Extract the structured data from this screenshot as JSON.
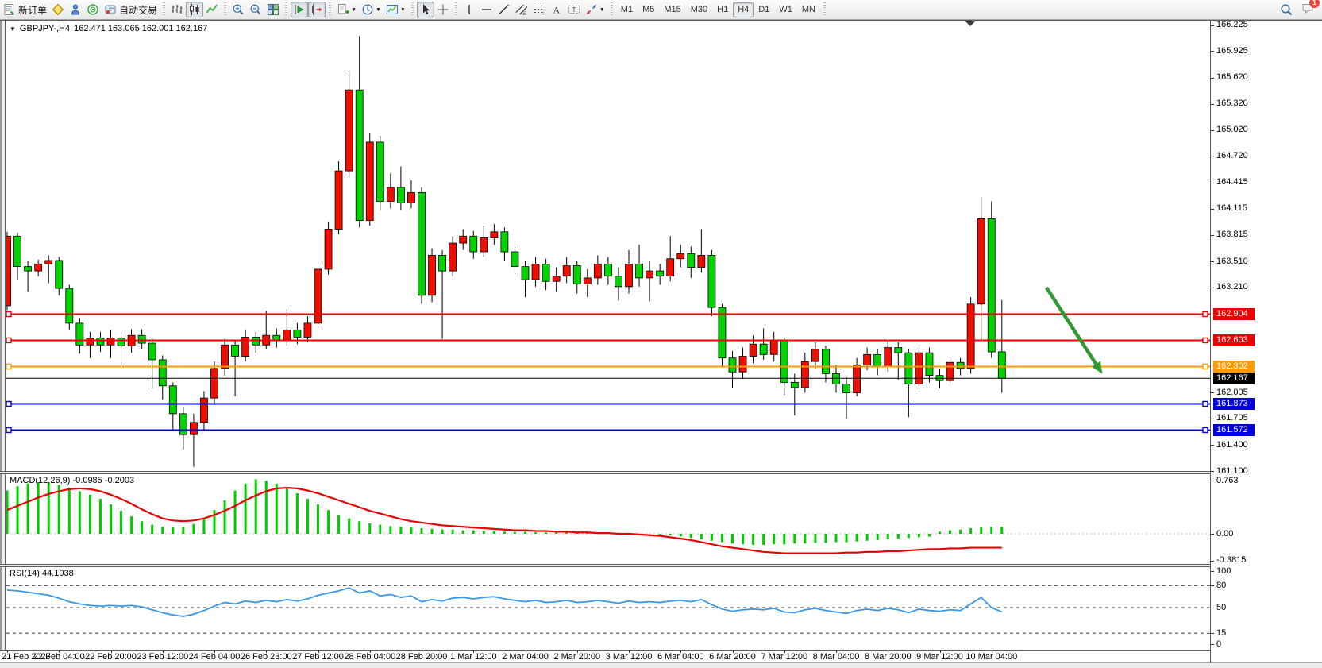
{
  "toolbar": {
    "groups": [
      {
        "items": [
          {
            "name": "new-order",
            "icon": "form",
            "label": "新订单"
          },
          {
            "name": "new-chart",
            "icon": "diamond"
          },
          {
            "name": "market-watch",
            "icon": "person"
          },
          {
            "name": "navigator",
            "icon": "radar"
          },
          {
            "name": "auto-trading",
            "icon": "autotrade",
            "label": "自动交易"
          }
        ]
      },
      {
        "items": [
          {
            "name": "bar-chart-mode",
            "icon": "bars"
          },
          {
            "name": "candle-chart-mode",
            "icon": "candles",
            "pressed": true
          },
          {
            "name": "line-chart-mode",
            "icon": "linechart"
          }
        ]
      },
      {
        "items": [
          {
            "name": "zoom-in",
            "icon": "zoomin"
          },
          {
            "name": "zoom-out",
            "icon": "zoomout"
          },
          {
            "name": "tile-windows",
            "icon": "tiles"
          }
        ]
      },
      {
        "items": [
          {
            "name": "chart-shift",
            "icon": "shift",
            "pressed": true
          },
          {
            "name": "auto-scroll",
            "icon": "autoscroll",
            "pressed": true
          }
        ]
      },
      {
        "items": [
          {
            "name": "new-order-menu",
            "icon": "orderplus",
            "dropdown": true
          },
          {
            "name": "periods-menu",
            "icon": "clock",
            "dropdown": true
          },
          {
            "name": "templates-menu",
            "icon": "template",
            "dropdown": true
          }
        ]
      },
      {
        "items": [
          {
            "name": "cursor-tool",
            "icon": "cursor",
            "pressed": true
          },
          {
            "name": "crosshair-tool",
            "icon": "crosshair"
          }
        ]
      },
      {
        "items": [
          {
            "name": "vertical-line-tool",
            "icon": "vline"
          },
          {
            "name": "horizontal-line-tool",
            "icon": "hline"
          },
          {
            "name": "trendline-tool",
            "icon": "trend"
          },
          {
            "name": "channel-tool",
            "icon": "channel"
          },
          {
            "name": "fibonacci-tool",
            "icon": "fibo"
          },
          {
            "name": "text-tool",
            "icon": "textA"
          },
          {
            "name": "text-label-tool",
            "icon": "label"
          },
          {
            "name": "arrows-tool",
            "icon": "arrows",
            "dropdown": true
          }
        ]
      }
    ],
    "timeframes": {
      "items": [
        "M1",
        "M5",
        "M15",
        "M30",
        "H1",
        "H4",
        "D1",
        "W1",
        "MN"
      ],
      "active": "H4"
    },
    "search_icon": "search",
    "notification_count": "1"
  },
  "chart": {
    "title": {
      "symbol_period": "GBPJPY-,H4",
      "ohlc": "162.471 163.065 162.001 162.167"
    },
    "macd_label": "MACD(12,26,9)",
    "macd_values": "-0.0985 -0.2003",
    "rsi_label": "RSI(14)",
    "rsi_value": "44.1038"
  },
  "chart_data": {
    "type": "candlestick",
    "symbol": "GBPJPY-",
    "period": "H4",
    "last_bar": {
      "open": 162.471,
      "high": 163.065,
      "low": 162.001,
      "close": 162.167
    },
    "up_color": "#ED1000",
    "down_color": "#00D300",
    "wick_color": "#000000",
    "price_axis_ticks": [
      166.225,
      165.925,
      165.62,
      165.32,
      165.02,
      164.72,
      164.415,
      164.115,
      163.815,
      163.51,
      163.21,
      162.005,
      161.705,
      161.4,
      161.1
    ],
    "ylim": [
      161.1,
      166.24
    ],
    "grid": false,
    "hlines": [
      {
        "price": 162.904,
        "color": "#ee0000",
        "width": 2,
        "markers": true
      },
      {
        "price": 162.603,
        "color": "#ee0000",
        "width": 2,
        "markers": true
      },
      {
        "price": 162.302,
        "color": "#ff9900",
        "width": 2,
        "markers": true
      },
      {
        "price": 162.167,
        "color": "#000000",
        "width": 1,
        "markers": false
      },
      {
        "price": 161.873,
        "color": "#0000e0",
        "width": 2,
        "markers": true
      },
      {
        "price": 161.572,
        "color": "#0000e0",
        "width": 2,
        "markers": true
      }
    ],
    "current_price": 162.167,
    "arrow_annotation": {
      "from": {
        "bar": 100.3,
        "price": 163.21
      },
      "to": {
        "bar": 105.7,
        "price": 162.22
      },
      "color": "#339933"
    },
    "time_labels": [
      "21 Feb 2023",
      "22 Feb 04:00",
      "22 Feb 20:00",
      "23 Feb 12:00",
      "24 Feb 04:00",
      "26 Feb 23:00",
      "27 Feb 12:00",
      "28 Feb 04:00",
      "28 Feb 20:00",
      "1 Mar 12:00",
      "2 Mar 04:00",
      "2 Mar 20:00",
      "3 Mar 12:00",
      "6 Mar 04:00",
      "6 Mar 20:00",
      "7 Mar 12:00",
      "8 Mar 04:00",
      "8 Mar 20:00",
      "9 Mar 12:00",
      "10 Mar 04:00"
    ],
    "bars_per_tick": 5,
    "candles": [
      [
        163.0,
        163.85,
        162.95,
        163.8
      ],
      [
        163.8,
        163.84,
        163.3,
        163.45
      ],
      [
        163.45,
        163.52,
        163.16,
        163.4
      ],
      [
        163.4,
        163.53,
        163.34,
        163.48
      ],
      [
        163.48,
        163.58,
        163.26,
        163.52
      ],
      [
        163.52,
        163.56,
        163.12,
        163.2
      ],
      [
        163.2,
        163.24,
        162.72,
        162.8
      ],
      [
        162.8,
        162.86,
        162.45,
        162.55
      ],
      [
        162.55,
        162.7,
        162.4,
        162.63
      ],
      [
        162.63,
        162.7,
        162.47,
        162.55
      ],
      [
        162.55,
        162.72,
        162.4,
        162.63
      ],
      [
        162.63,
        162.7,
        162.28,
        162.54
      ],
      [
        162.54,
        162.73,
        162.46,
        162.66
      ],
      [
        162.66,
        162.73,
        162.5,
        162.57
      ],
      [
        162.57,
        162.63,
        162.05,
        162.38
      ],
      [
        162.38,
        162.43,
        161.92,
        162.08
      ],
      [
        162.08,
        162.12,
        161.58,
        161.76
      ],
      [
        161.76,
        161.84,
        161.35,
        161.52
      ],
      [
        161.52,
        161.76,
        161.15,
        161.66
      ],
      [
        161.66,
        162.02,
        161.58,
        161.94
      ],
      [
        161.94,
        162.36,
        161.86,
        162.28
      ],
      [
        162.28,
        162.62,
        162.2,
        162.55
      ],
      [
        162.55,
        162.6,
        161.96,
        162.42
      ],
      [
        162.42,
        162.72,
        162.36,
        162.64
      ],
      [
        162.64,
        162.7,
        162.46,
        162.55
      ],
      [
        162.55,
        162.94,
        162.5,
        162.66
      ],
      [
        162.66,
        162.74,
        162.52,
        162.6
      ],
      [
        162.6,
        162.96,
        162.54,
        162.72
      ],
      [
        162.72,
        162.8,
        162.56,
        162.64
      ],
      [
        162.64,
        162.88,
        162.58,
        162.8
      ],
      [
        162.8,
        163.5,
        162.74,
        163.42
      ],
      [
        163.42,
        163.96,
        163.36,
        163.88
      ],
      [
        163.88,
        164.66,
        163.82,
        164.55
      ],
      [
        164.55,
        165.7,
        164.48,
        165.48
      ],
      [
        165.48,
        166.1,
        163.9,
        163.98
      ],
      [
        163.98,
        164.98,
        163.92,
        164.88
      ],
      [
        164.88,
        164.95,
        164.1,
        164.2
      ],
      [
        164.2,
        164.52,
        164.12,
        164.36
      ],
      [
        164.36,
        164.6,
        164.1,
        164.18
      ],
      [
        164.18,
        164.44,
        164.12,
        164.3
      ],
      [
        164.3,
        164.36,
        163.02,
        163.12
      ],
      [
        163.12,
        163.66,
        163.04,
        163.58
      ],
      [
        163.58,
        163.64,
        162.62,
        163.4
      ],
      [
        163.4,
        163.8,
        163.34,
        163.72
      ],
      [
        163.72,
        163.88,
        163.64,
        163.8
      ],
      [
        163.8,
        163.86,
        163.54,
        163.62
      ],
      [
        163.62,
        163.92,
        163.56,
        163.78
      ],
      [
        163.78,
        163.94,
        163.7,
        163.85
      ],
      [
        163.85,
        163.9,
        163.52,
        163.62
      ],
      [
        163.62,
        163.68,
        163.36,
        163.45
      ],
      [
        163.45,
        163.52,
        163.1,
        163.3
      ],
      [
        163.3,
        163.56,
        163.22,
        163.48
      ],
      [
        163.48,
        163.54,
        163.18,
        163.28
      ],
      [
        163.28,
        163.44,
        163.16,
        163.34
      ],
      [
        163.34,
        163.56,
        163.26,
        163.46
      ],
      [
        163.46,
        163.52,
        163.14,
        163.25
      ],
      [
        163.25,
        163.42,
        163.1,
        163.32
      ],
      [
        163.32,
        163.58,
        163.24,
        163.48
      ],
      [
        163.48,
        163.56,
        163.24,
        163.34
      ],
      [
        163.34,
        163.44,
        163.06,
        163.22
      ],
      [
        163.22,
        163.64,
        163.14,
        163.48
      ],
      [
        163.48,
        163.7,
        163.22,
        163.32
      ],
      [
        163.32,
        163.52,
        163.05,
        163.4
      ],
      [
        163.4,
        163.48,
        163.24,
        163.34
      ],
      [
        163.34,
        163.8,
        163.28,
        163.54
      ],
      [
        163.54,
        163.7,
        163.44,
        163.6
      ],
      [
        163.6,
        163.68,
        163.32,
        163.44
      ],
      [
        163.44,
        163.88,
        163.38,
        163.58
      ],
      [
        163.58,
        163.64,
        162.88,
        162.98
      ],
      [
        162.98,
        163.02,
        162.3,
        162.4
      ],
      [
        162.4,
        162.48,
        162.06,
        162.24
      ],
      [
        162.24,
        162.52,
        162.16,
        162.42
      ],
      [
        162.42,
        162.66,
        162.34,
        162.56
      ],
      [
        162.56,
        162.74,
        162.38,
        162.44
      ],
      [
        162.44,
        162.7,
        162.36,
        162.6
      ],
      [
        162.6,
        162.64,
        161.98,
        162.12
      ],
      [
        162.12,
        162.22,
        161.74,
        162.06
      ],
      [
        162.06,
        162.46,
        162.0,
        162.36
      ],
      [
        162.36,
        162.58,
        162.28,
        162.5
      ],
      [
        162.5,
        162.54,
        162.12,
        162.22
      ],
      [
        162.22,
        162.32,
        162.0,
        162.1
      ],
      [
        162.1,
        162.18,
        161.7,
        162.0
      ],
      [
        162.0,
        162.4,
        161.96,
        162.32
      ],
      [
        162.32,
        162.52,
        162.26,
        162.44
      ],
      [
        162.44,
        162.5,
        162.2,
        162.3
      ],
      [
        162.3,
        162.6,
        162.24,
        162.52
      ],
      [
        162.52,
        162.58,
        162.15,
        162.46
      ],
      [
        162.46,
        162.5,
        161.72,
        162.1
      ],
      [
        162.1,
        162.52,
        162.04,
        162.46
      ],
      [
        162.46,
        162.52,
        162.12,
        162.2
      ],
      [
        162.2,
        162.28,
        162.05,
        162.14
      ],
      [
        162.14,
        162.42,
        162.08,
        162.35
      ],
      [
        162.35,
        162.4,
        162.2,
        162.28
      ],
      [
        162.28,
        163.1,
        162.22,
        163.02
      ],
      [
        163.02,
        164.25,
        162.6,
        164.0
      ],
      [
        164.0,
        164.2,
        162.4,
        162.47
      ],
      [
        162.471,
        163.065,
        162.001,
        162.167
      ]
    ],
    "macd": {
      "title": "MACD(12,26,9)",
      "main_value": -0.0985,
      "signal_value": -0.2003,
      "axis_labels": [
        0.763,
        0.0,
        -0.3815
      ],
      "hist_color": "#00CC00",
      "signal_color": "#E80000",
      "histogram": [
        0.62,
        0.68,
        0.72,
        0.74,
        0.73,
        0.7,
        0.66,
        0.61,
        0.56,
        0.5,
        0.42,
        0.33,
        0.25,
        0.18,
        0.13,
        0.1,
        0.09,
        0.1,
        0.14,
        0.22,
        0.34,
        0.48,
        0.62,
        0.72,
        0.78,
        0.76,
        0.72,
        0.66,
        0.58,
        0.5,
        0.42,
        0.34,
        0.27,
        0.22,
        0.18,
        0.15,
        0.13,
        0.11,
        0.1,
        0.09,
        0.08,
        0.07,
        0.06,
        0.06,
        0.05,
        0.05,
        0.04,
        0.04,
        0.03,
        0.03,
        0.03,
        0.02,
        0.02,
        0.02,
        0.02,
        0.02,
        0.01,
        0.01,
        0.01,
        0.01,
        0.01,
        0.0,
        0.0,
        -0.01,
        -0.02,
        -0.04,
        -0.06,
        -0.08,
        -0.1,
        -0.12,
        -0.14,
        -0.15,
        -0.16,
        -0.16,
        -0.15,
        -0.15,
        -0.14,
        -0.14,
        -0.13,
        -0.13,
        -0.12,
        -0.12,
        -0.11,
        -0.1,
        -0.09,
        -0.08,
        -0.07,
        -0.06,
        -0.05,
        -0.04,
        0.03,
        0.05,
        0.06,
        0.08,
        0.09,
        0.1,
        0.1
      ],
      "signal": [
        0.34,
        0.4,
        0.46,
        0.52,
        0.57,
        0.61,
        0.64,
        0.65,
        0.64,
        0.61,
        0.56,
        0.5,
        0.43,
        0.35,
        0.28,
        0.22,
        0.19,
        0.18,
        0.19,
        0.22,
        0.27,
        0.33,
        0.4,
        0.48,
        0.55,
        0.61,
        0.65,
        0.66,
        0.65,
        0.62,
        0.58,
        0.53,
        0.48,
        0.43,
        0.38,
        0.33,
        0.29,
        0.25,
        0.21,
        0.18,
        0.16,
        0.14,
        0.12,
        0.11,
        0.1,
        0.09,
        0.08,
        0.07,
        0.06,
        0.05,
        0.05,
        0.04,
        0.04,
        0.03,
        0.03,
        0.02,
        0.02,
        0.01,
        0.01,
        0.0,
        0.0,
        -0.01,
        -0.02,
        -0.03,
        -0.05,
        -0.07,
        -0.09,
        -0.12,
        -0.15,
        -0.18,
        -0.2,
        -0.22,
        -0.24,
        -0.26,
        -0.27,
        -0.28,
        -0.28,
        -0.28,
        -0.28,
        -0.28,
        -0.28,
        -0.27,
        -0.27,
        -0.26,
        -0.26,
        -0.25,
        -0.25,
        -0.24,
        -0.23,
        -0.22,
        -0.22,
        -0.21,
        -0.21,
        -0.2,
        -0.2,
        -0.2,
        -0.2
      ]
    },
    "rsi": {
      "title": "RSI(14)",
      "value": 44.1038,
      "levels": [
        80,
        50,
        15
      ],
      "axis_labels": [
        100,
        80,
        50,
        15,
        0
      ],
      "color": "#3A97E8",
      "values": [
        74,
        73,
        71,
        69,
        67,
        63,
        58,
        55,
        53,
        52,
        53,
        52,
        53,
        51,
        47,
        43,
        40,
        38,
        41,
        46,
        52,
        57,
        55,
        59,
        57,
        60,
        58,
        61,
        59,
        62,
        67,
        70,
        73,
        77,
        70,
        73,
        66,
        68,
        64,
        66,
        58,
        61,
        59,
        63,
        64,
        62,
        64,
        65,
        62,
        60,
        58,
        60,
        57,
        58,
        60,
        57,
        58,
        60,
        58,
        56,
        59,
        57,
        58,
        57,
        59,
        60,
        58,
        61,
        54,
        48,
        45,
        47,
        48,
        47,
        49,
        44,
        43,
        47,
        49,
        46,
        44,
        42,
        46,
        48,
        46,
        49,
        47,
        43,
        48,
        46,
        45,
        47,
        46,
        55,
        64,
        50,
        44.1
      ]
    }
  }
}
